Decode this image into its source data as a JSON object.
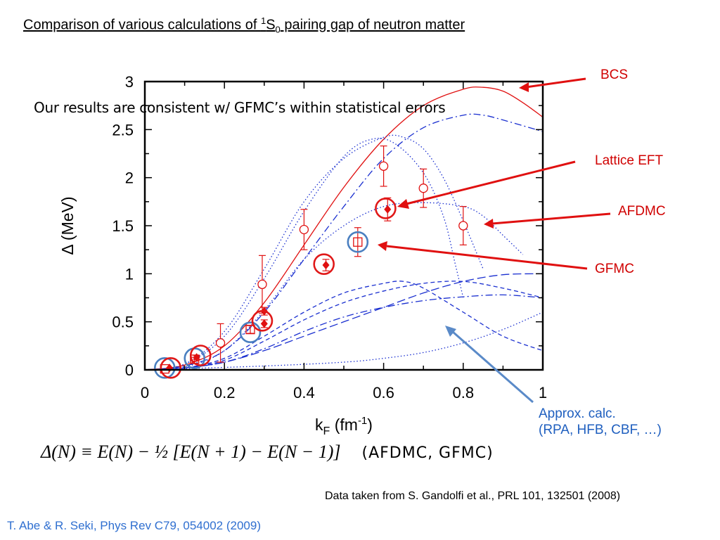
{
  "slide": {
    "title_pre": "Comparison of various calculations of ",
    "title_sup": "1",
    "title_mid": "S",
    "title_sub": "0",
    "title_post": " pairing gap of neutron matter",
    "note": "Our results are consistent w/ GFMC’s within statistical errors",
    "labels": {
      "bcs": "BCS",
      "lattice": "Lattice EFT",
      "afdmc": "AFDMC",
      "gfmc": "GFMC",
      "approx_line1": "Approx. calc.",
      "approx_line2": "(RPA, HFB, CBF, …)"
    },
    "formula_text": "Δ(N) ≡ E(N) − ½ [E(N + 1) − E(N − 1)]",
    "formula_tag": "(AFDMC, GFMC)",
    "data_source": "Data taken from S. Gandolfi et al., PRL 101, 132501 (2008)",
    "reference": "T. Abe & R. Seki, Phys Rev C79, 054002 (2009)"
  },
  "colors": {
    "red": "#e01010",
    "blue": "#1a2fd0",
    "circle_red": "#e01818",
    "circle_blue": "#4a7fc0",
    "arrow_blue": "#5a8ac8"
  },
  "chart_data": {
    "type": "scatter",
    "xlabel_main": "k",
    "xlabel_sub": "F",
    "xlabel_unit_pre": " (fm",
    "xlabel_unit_sup": "-1",
    "xlabel_unit_post": ")",
    "ylabel": "Δ (MeV)",
    "xlim": [
      0,
      1
    ],
    "ylim": [
      0,
      3
    ],
    "x_ticks": [
      "0",
      "0.2",
      "0.4",
      "0.6",
      "0.8",
      "1"
    ],
    "y_ticks": [
      "0",
      "0.5",
      "1",
      "1.5",
      "2",
      "2.5",
      "3"
    ],
    "grid": false,
    "series": [
      {
        "name": "AFDMC",
        "marker": "open-circle",
        "points": [
          {
            "x": 0.19,
            "y": 0.28,
            "err": 0.2
          },
          {
            "x": 0.295,
            "y": 0.89,
            "err": 0.3
          },
          {
            "x": 0.4,
            "y": 1.46,
            "err": 0.21
          },
          {
            "x": 0.6,
            "y": 2.12,
            "err": 0.21
          },
          {
            "x": 0.7,
            "y": 1.89,
            "err": 0.2
          },
          {
            "x": 0.8,
            "y": 1.5,
            "err": 0.2
          }
        ]
      },
      {
        "name": "Lattice EFT",
        "marker": "filled-diamond",
        "points": [
          {
            "x": 0.062,
            "y": 0.02,
            "err": 0.0
          },
          {
            "x": 0.13,
            "y": 0.13,
            "err": 0.02
          },
          {
            "x": 0.3,
            "y": 0.48,
            "err": 0.04
          },
          {
            "x": 0.3,
            "y": 0.61,
            "err": 0.04
          },
          {
            "x": 0.455,
            "y": 1.09,
            "err": 0.06
          },
          {
            "x": 0.61,
            "y": 1.67,
            "err": 0.12
          }
        ]
      },
      {
        "name": "GFMC",
        "marker": "open-square",
        "points": [
          {
            "x": 0.05,
            "y": 0.01,
            "err": 0.0
          },
          {
            "x": 0.125,
            "y": 0.11,
            "err": 0.02
          },
          {
            "x": 0.265,
            "y": 0.42,
            "err": 0.04
          },
          {
            "x": 0.535,
            "y": 1.33,
            "err": 0.15
          }
        ]
      }
    ],
    "highlighted": [
      {
        "x": 0.05,
        "y": 0.02,
        "color": "blue"
      },
      {
        "x": 0.065,
        "y": 0.02,
        "color": "red"
      },
      {
        "x": 0.125,
        "y": 0.12,
        "color": "blue"
      },
      {
        "x": 0.14,
        "y": 0.15,
        "color": "red"
      },
      {
        "x": 0.265,
        "y": 0.39,
        "color": "blue"
      },
      {
        "x": 0.295,
        "y": 0.51,
        "color": "red"
      },
      {
        "x": 0.45,
        "y": 1.1,
        "color": "red"
      },
      {
        "x": 0.535,
        "y": 1.33,
        "color": "blue"
      },
      {
        "x": 0.605,
        "y": 1.68,
        "color": "red"
      }
    ],
    "curves": [
      {
        "name": "BCS",
        "style": "solid",
        "color": "red",
        "points": [
          [
            0,
            0
          ],
          [
            0.1,
            0.05
          ],
          [
            0.2,
            0.25
          ],
          [
            0.3,
            0.7
          ],
          [
            0.4,
            1.3
          ],
          [
            0.5,
            1.9
          ],
          [
            0.6,
            2.4
          ],
          [
            0.7,
            2.75
          ],
          [
            0.8,
            2.92
          ],
          [
            0.85,
            2.94
          ],
          [
            0.9,
            2.9
          ],
          [
            0.95,
            2.78
          ],
          [
            1.0,
            2.63
          ]
        ]
      },
      {
        "name": "approx-1",
        "style": "dashdot",
        "color": "blue",
        "points": [
          [
            0,
            0
          ],
          [
            0.1,
            0.04
          ],
          [
            0.2,
            0.2
          ],
          [
            0.3,
            0.6
          ],
          [
            0.4,
            1.15
          ],
          [
            0.5,
            1.7
          ],
          [
            0.6,
            2.2
          ],
          [
            0.7,
            2.52
          ],
          [
            0.8,
            2.65
          ],
          [
            0.85,
            2.65
          ],
          [
            0.9,
            2.6
          ],
          [
            1.0,
            2.48
          ]
        ]
      },
      {
        "name": "approx-2",
        "style": "dotted",
        "color": "blue",
        "points": [
          [
            0,
            0
          ],
          [
            0.1,
            0.06
          ],
          [
            0.2,
            0.35
          ],
          [
            0.3,
            0.95
          ],
          [
            0.4,
            1.65
          ],
          [
            0.5,
            2.22
          ],
          [
            0.57,
            2.4
          ],
          [
            0.63,
            2.35
          ],
          [
            0.7,
            2.05
          ],
          [
            0.75,
            1.6
          ],
          [
            0.78,
            1.1
          ],
          [
            0.8,
            0.75
          ]
        ]
      },
      {
        "name": "approx-3",
        "style": "dotted",
        "color": "blue",
        "points": [
          [
            0,
            0
          ],
          [
            0.1,
            0.06
          ],
          [
            0.2,
            0.4
          ],
          [
            0.3,
            1.05
          ],
          [
            0.4,
            1.75
          ],
          [
            0.5,
            2.2
          ],
          [
            0.6,
            2.42
          ],
          [
            0.65,
            2.42
          ],
          [
            0.7,
            2.3
          ],
          [
            0.75,
            2.0
          ],
          [
            0.8,
            1.55
          ],
          [
            0.85,
            1.05
          ]
        ]
      },
      {
        "name": "approx-4",
        "style": "dotted",
        "color": "blue",
        "points": [
          [
            0,
            0
          ],
          [
            0.1,
            0.03
          ],
          [
            0.2,
            0.2
          ],
          [
            0.3,
            0.62
          ],
          [
            0.4,
            1.15
          ],
          [
            0.5,
            1.5
          ],
          [
            0.6,
            1.7
          ],
          [
            0.7,
            1.74
          ],
          [
            0.8,
            1.7
          ],
          [
            0.85,
            1.6
          ],
          [
            0.9,
            1.4
          ],
          [
            0.95,
            1.2
          ]
        ]
      },
      {
        "name": "approx-5",
        "style": "dashed",
        "color": "blue",
        "points": [
          [
            0,
            0
          ],
          [
            0.1,
            0.02
          ],
          [
            0.2,
            0.1
          ],
          [
            0.3,
            0.3
          ],
          [
            0.4,
            0.52
          ],
          [
            0.5,
            0.7
          ],
          [
            0.6,
            0.82
          ],
          [
            0.7,
            0.9
          ],
          [
            0.8,
            0.92
          ],
          [
            0.9,
            0.85
          ],
          [
            1.0,
            0.75
          ]
        ]
      },
      {
        "name": "approx-6",
        "style": "dashed",
        "color": "blue",
        "points": [
          [
            0,
            0
          ],
          [
            0.1,
            0.02
          ],
          [
            0.2,
            0.12
          ],
          [
            0.3,
            0.35
          ],
          [
            0.4,
            0.6
          ],
          [
            0.5,
            0.8
          ],
          [
            0.6,
            0.9
          ],
          [
            0.65,
            0.92
          ],
          [
            0.7,
            0.85
          ],
          [
            0.8,
            0.6
          ],
          [
            0.9,
            0.35
          ],
          [
            1.0,
            0.2
          ]
        ]
      },
      {
        "name": "approx-7",
        "style": "dashdot",
        "color": "blue",
        "points": [
          [
            0,
            0
          ],
          [
            0.1,
            0.02
          ],
          [
            0.2,
            0.08
          ],
          [
            0.3,
            0.22
          ],
          [
            0.4,
            0.4
          ],
          [
            0.5,
            0.55
          ],
          [
            0.6,
            0.65
          ],
          [
            0.7,
            0.72
          ],
          [
            0.8,
            0.76
          ],
          [
            0.9,
            0.78
          ],
          [
            1.0,
            0.75
          ]
        ]
      },
      {
        "name": "approx-8",
        "style": "longdash",
        "color": "blue",
        "points": [
          [
            0,
            0
          ],
          [
            0.1,
            0.02
          ],
          [
            0.2,
            0.08
          ],
          [
            0.3,
            0.2
          ],
          [
            0.4,
            0.35
          ],
          [
            0.5,
            0.5
          ],
          [
            0.6,
            0.65
          ],
          [
            0.7,
            0.8
          ],
          [
            0.8,
            0.92
          ],
          [
            0.9,
            0.99
          ],
          [
            1.0,
            1.0
          ]
        ]
      },
      {
        "name": "approx-9",
        "style": "dotted",
        "color": "blue",
        "points": [
          [
            0,
            0
          ],
          [
            0.3,
            0.04
          ],
          [
            0.5,
            0.08
          ],
          [
            0.6,
            0.12
          ],
          [
            0.7,
            0.18
          ],
          [
            0.8,
            0.28
          ],
          [
            0.9,
            0.42
          ],
          [
            1.0,
            0.6
          ]
        ]
      }
    ]
  }
}
